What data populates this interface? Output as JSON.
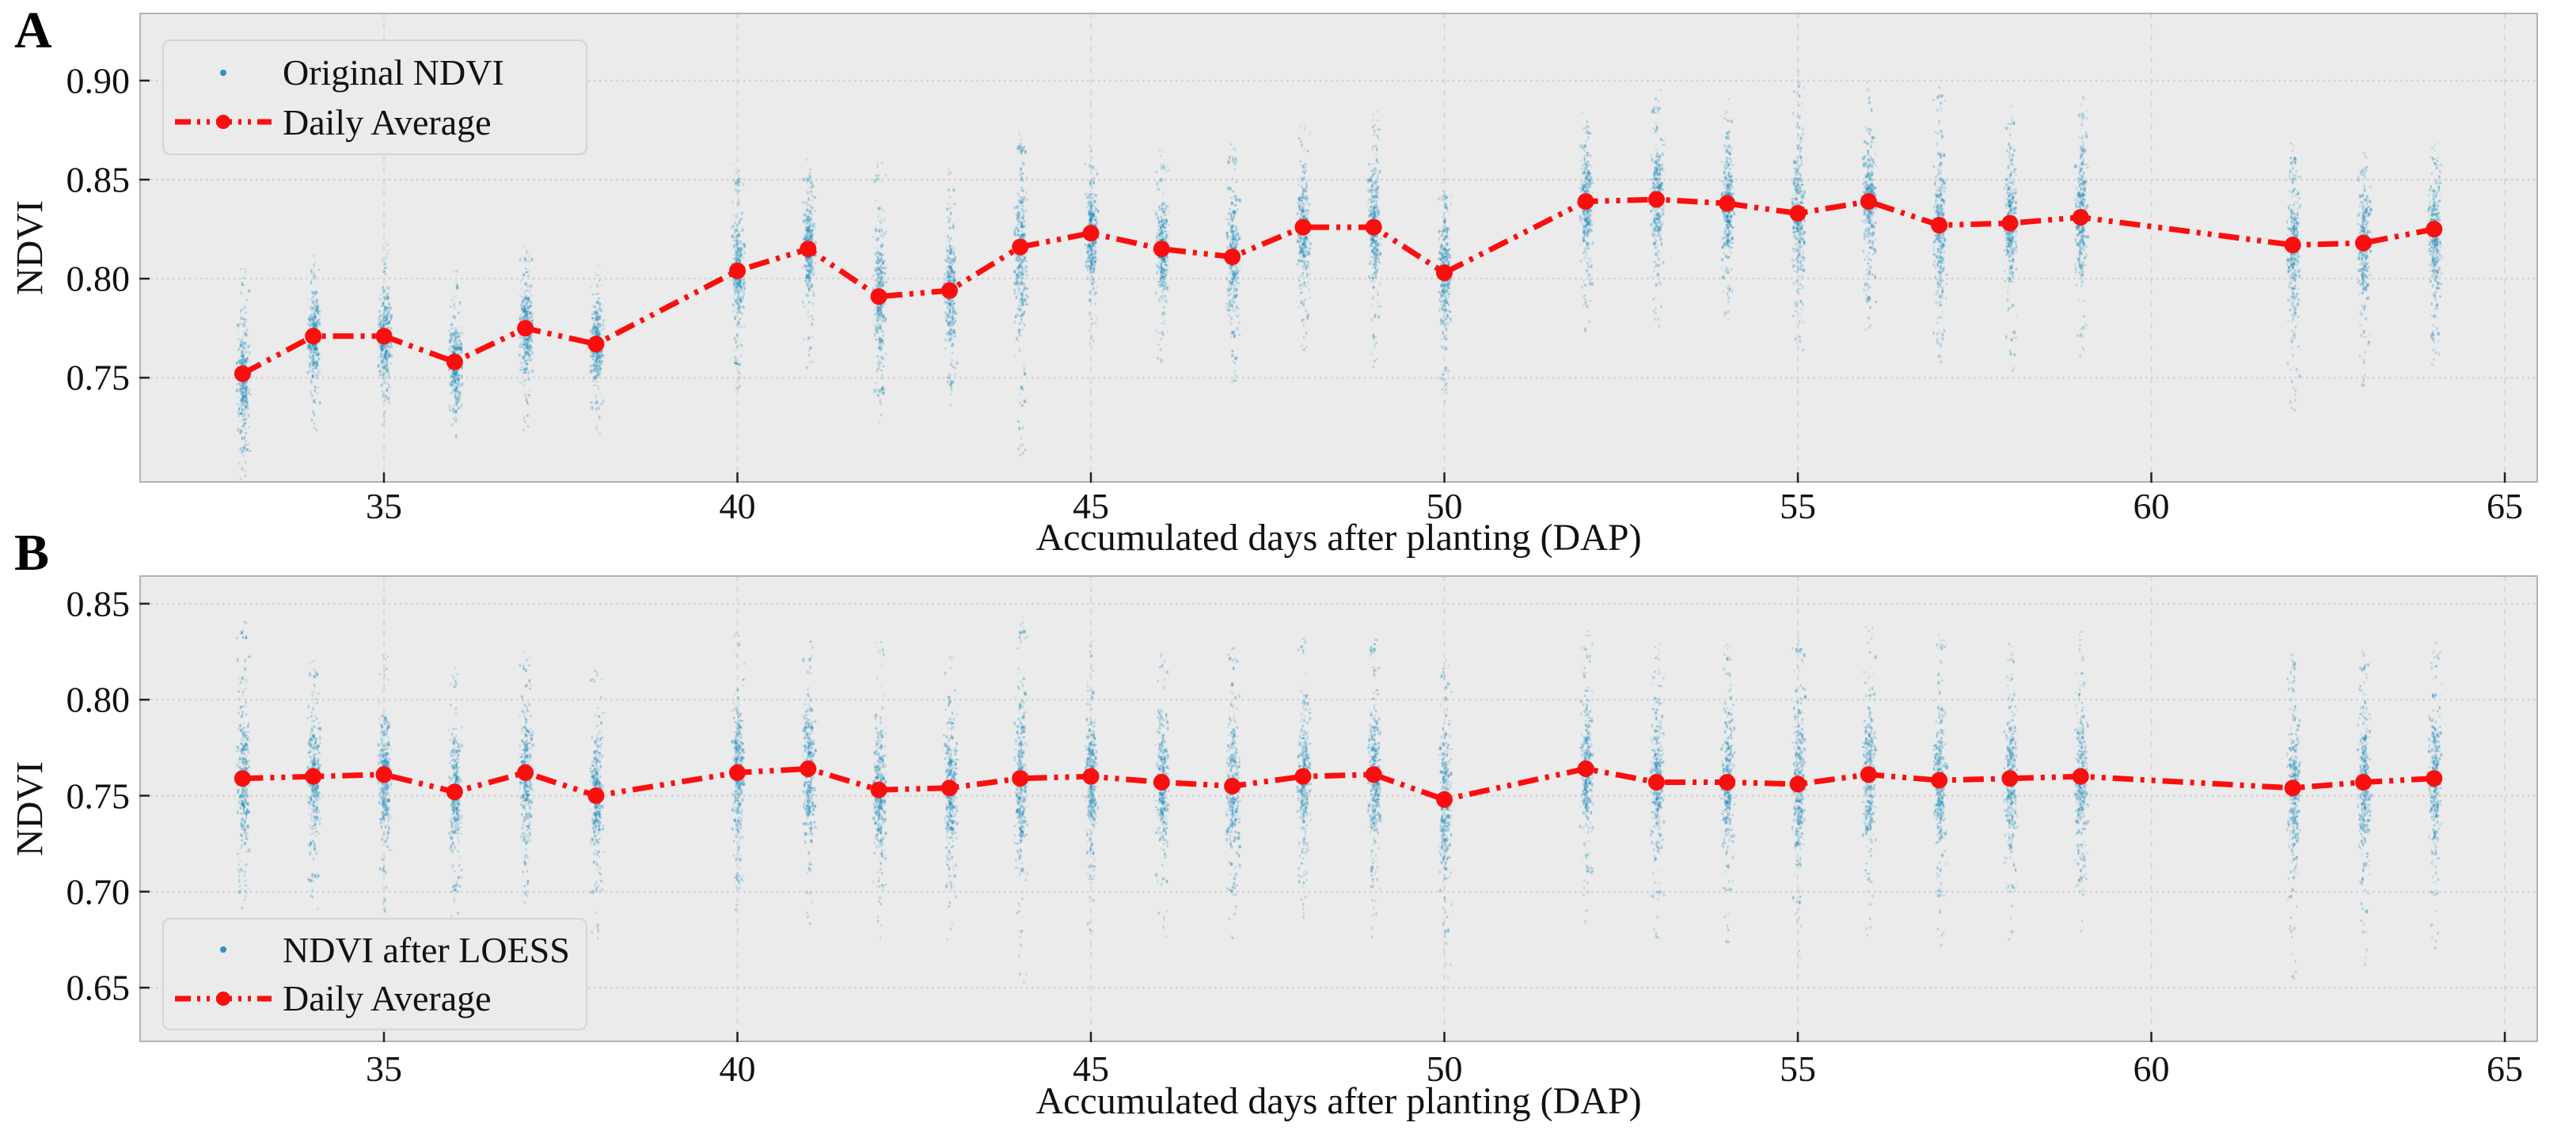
{
  "figure": {
    "panel_a_letter": "A",
    "panel_b_letter": "B",
    "xlabel": "Accumulated days after planting (DAP)",
    "ylabel": "NDVI"
  },
  "colors": {
    "scatter": "#1b87b9",
    "scatter_light": "#5fb4d6",
    "daily_average_line": "#fa0f0f",
    "plot_background": "#ebebeb",
    "grid": "#c8c8c8",
    "spine": "#b3b3b3",
    "text": "#111111"
  },
  "chart_data": [
    {
      "panel": "A",
      "type": "scatter",
      "legend": {
        "scatter_label": "Original NDVI",
        "line_label": "Daily Average"
      },
      "legend_position": "upper left",
      "xlabel": "Accumulated days after planting (DAP)",
      "ylabel": "NDVI",
      "x_dap": [
        33,
        34,
        35,
        36,
        37,
        38,
        40,
        41,
        42,
        43,
        44,
        45,
        46,
        47,
        48,
        49,
        50,
        52,
        53,
        54,
        55,
        56,
        57,
        58,
        59,
        62,
        63,
        64
      ],
      "daily_average": [
        0.752,
        0.771,
        0.771,
        0.758,
        0.775,
        0.767,
        0.804,
        0.815,
        0.791,
        0.794,
        0.816,
        0.823,
        0.815,
        0.811,
        0.826,
        0.826,
        0.803,
        0.839,
        0.84,
        0.838,
        0.833,
        0.839,
        0.827,
        0.828,
        0.831,
        0.817,
        0.818,
        0.825
      ],
      "scatter_low": [
        0.713,
        0.735,
        0.74,
        0.733,
        0.738,
        0.735,
        0.757,
        0.768,
        0.742,
        0.748,
        0.725,
        0.78,
        0.772,
        0.76,
        0.778,
        0.77,
        0.748,
        0.788,
        0.79,
        0.793,
        0.778,
        0.788,
        0.77,
        0.768,
        0.775,
        0.748,
        0.76,
        0.77
      ],
      "scatter_high": [
        0.8,
        0.805,
        0.812,
        0.798,
        0.812,
        0.8,
        0.852,
        0.853,
        0.853,
        0.848,
        0.868,
        0.86,
        0.858,
        0.862,
        0.875,
        0.878,
        0.843,
        0.878,
        0.888,
        0.883,
        0.898,
        0.893,
        0.893,
        0.88,
        0.885,
        0.862,
        0.858,
        0.862
      ],
      "xticks": [
        "35",
        "40",
        "45",
        "50",
        "55",
        "60",
        "65"
      ],
      "yticks": [
        "0.75",
        "0.80",
        "0.85",
        "0.90"
      ],
      "xlim": [
        31.54,
        65.47
      ],
      "ylim": [
        0.697,
        0.9343
      ],
      "grid": true
    },
    {
      "panel": "B",
      "type": "scatter",
      "legend": {
        "scatter_label": "NDVI after LOESS",
        "line_label": "Daily Average"
      },
      "legend_position": "lower left",
      "xlabel": "Accumulated days after planting (DAP)",
      "ylabel": "NDVI",
      "x_dap": [
        33,
        34,
        35,
        36,
        37,
        38,
        40,
        41,
        42,
        43,
        44,
        45,
        46,
        47,
        48,
        49,
        50,
        52,
        53,
        54,
        55,
        56,
        57,
        58,
        59,
        62,
        63,
        64
      ],
      "daily_average": [
        0.759,
        0.76,
        0.761,
        0.752,
        0.762,
        0.75,
        0.762,
        0.764,
        0.753,
        0.754,
        0.759,
        0.76,
        0.757,
        0.755,
        0.76,
        0.761,
        0.748,
        0.764,
        0.757,
        0.757,
        0.756,
        0.761,
        0.758,
        0.759,
        0.76,
        0.754,
        0.757,
        0.759
      ],
      "scatter_low": [
        0.7,
        0.706,
        0.71,
        0.7,
        0.703,
        0.7,
        0.706,
        0.712,
        0.7,
        0.702,
        0.68,
        0.706,
        0.705,
        0.7,
        0.705,
        0.702,
        0.68,
        0.71,
        0.698,
        0.7,
        0.694,
        0.705,
        0.698,
        0.702,
        0.706,
        0.678,
        0.688,
        0.698
      ],
      "scatter_high": [
        0.836,
        0.816,
        0.82,
        0.812,
        0.82,
        0.812,
        0.83,
        0.825,
        0.826,
        0.818,
        0.838,
        0.825,
        0.82,
        0.824,
        0.83,
        0.83,
        0.815,
        0.83,
        0.824,
        0.824,
        0.828,
        0.835,
        0.83,
        0.825,
        0.83,
        0.82,
        0.82,
        0.825
      ],
      "xticks": [
        "35",
        "40",
        "45",
        "50",
        "55",
        "60",
        "65"
      ],
      "yticks": [
        "0.65",
        "0.70",
        "0.75",
        "0.80",
        "0.85"
      ],
      "xlim": [
        31.54,
        65.47
      ],
      "ylim": [
        0.6216,
        0.8648
      ],
      "grid": true
    }
  ]
}
